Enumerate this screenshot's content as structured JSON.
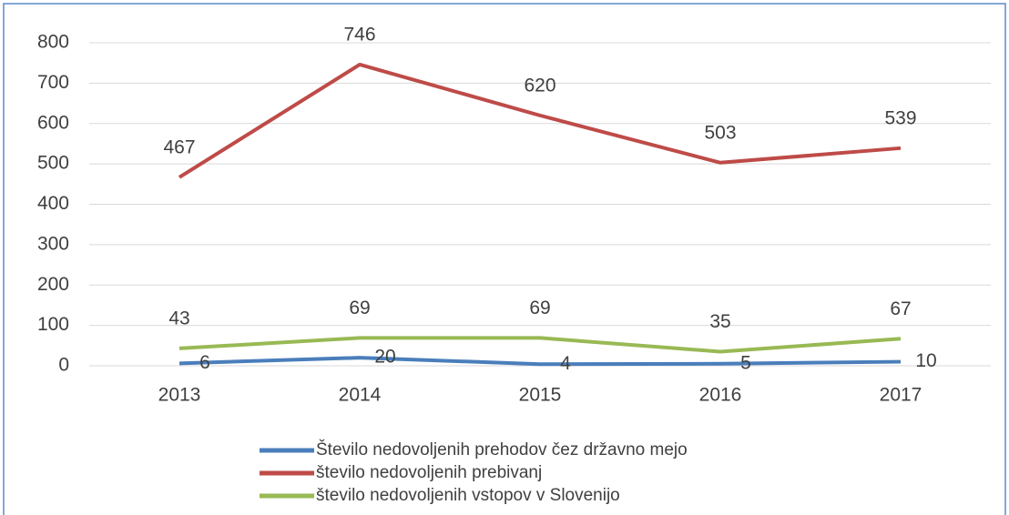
{
  "chart_data": {
    "type": "line",
    "categories": [
      "2013",
      "2014",
      "2015",
      "2016",
      "2017"
    ],
    "series": [
      {
        "name": "Število nedovoljenih prehodov čez državno mejo",
        "color": "#4a7ebb",
        "values": [
          6,
          20,
          4,
          5,
          10
        ]
      },
      {
        "name": "število nedovoljenih prebivanj",
        "color": "#be4b48",
        "values": [
          467,
          746,
          620,
          503,
          539
        ]
      },
      {
        "name": "število nedovoljenih vstopov v Slovenijo",
        "color": "#98b954",
        "values": [
          43,
          69,
          69,
          35,
          67
        ]
      }
    ],
    "ylim": [
      0,
      800
    ],
    "yticks": [
      0,
      100,
      200,
      300,
      400,
      500,
      600,
      700,
      800
    ],
    "grid": true,
    "legend": "bottom"
  }
}
